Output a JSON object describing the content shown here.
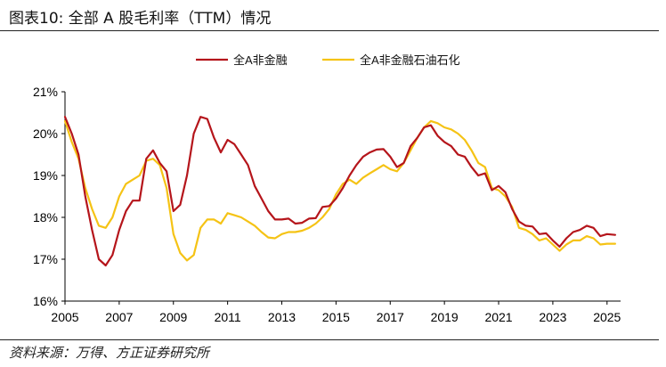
{
  "figure": {
    "title": "图表10: 全部 A 股毛利率（TTM）情况",
    "source": "资料来源：万得、方正证券研究所"
  },
  "chart_data": {
    "type": "line",
    "title": "",
    "xlabel": "",
    "ylabel": "",
    "xlim": [
      2005,
      2025.5
    ],
    "ylim": [
      16,
      21
    ],
    "x_ticks": [
      "2005",
      "2007",
      "2009",
      "2011",
      "2013",
      "2015",
      "2017",
      "2019",
      "2021",
      "2023",
      "2025"
    ],
    "y_ticks": [
      "16%",
      "17%",
      "18%",
      "19%",
      "20%",
      "21%"
    ],
    "y_unit": "%",
    "grid": false,
    "legend_position": "top-center",
    "series": [
      {
        "name": "全A非金融",
        "color": "#b5151b",
        "points": [
          [
            2005.0,
            20.4
          ],
          [
            2005.25,
            20.0
          ],
          [
            2005.5,
            19.5
          ],
          [
            2005.75,
            18.5
          ],
          [
            2006.0,
            17.7
          ],
          [
            2006.25,
            17.0
          ],
          [
            2006.5,
            16.85
          ],
          [
            2006.75,
            17.1
          ],
          [
            2007.0,
            17.7
          ],
          [
            2007.25,
            18.15
          ],
          [
            2007.5,
            18.4
          ],
          [
            2007.75,
            18.4
          ],
          [
            2008.0,
            19.4
          ],
          [
            2008.25,
            19.6
          ],
          [
            2008.5,
            19.3
          ],
          [
            2008.75,
            19.1
          ],
          [
            2009.0,
            18.15
          ],
          [
            2009.25,
            18.3
          ],
          [
            2009.5,
            19.0
          ],
          [
            2009.75,
            20.0
          ],
          [
            2010.0,
            20.4
          ],
          [
            2010.25,
            20.35
          ],
          [
            2010.5,
            19.9
          ],
          [
            2010.75,
            19.55
          ],
          [
            2011.0,
            19.85
          ],
          [
            2011.25,
            19.75
          ],
          [
            2011.5,
            19.5
          ],
          [
            2011.75,
            19.25
          ],
          [
            2012.0,
            18.75
          ],
          [
            2012.25,
            18.45
          ],
          [
            2012.5,
            18.15
          ],
          [
            2012.75,
            17.95
          ],
          [
            2013.0,
            17.95
          ],
          [
            2013.25,
            17.97
          ],
          [
            2013.5,
            17.85
          ],
          [
            2013.75,
            17.87
          ],
          [
            2014.0,
            17.97
          ],
          [
            2014.25,
            17.98
          ],
          [
            2014.5,
            18.25
          ],
          [
            2014.75,
            18.27
          ],
          [
            2015.0,
            18.45
          ],
          [
            2015.25,
            18.7
          ],
          [
            2015.5,
            19.0
          ],
          [
            2015.75,
            19.25
          ],
          [
            2016.0,
            19.45
          ],
          [
            2016.25,
            19.55
          ],
          [
            2016.5,
            19.62
          ],
          [
            2016.75,
            19.63
          ],
          [
            2017.0,
            19.45
          ],
          [
            2017.25,
            19.2
          ],
          [
            2017.5,
            19.3
          ],
          [
            2017.75,
            19.7
          ],
          [
            2018.0,
            19.9
          ],
          [
            2018.25,
            20.15
          ],
          [
            2018.5,
            20.2
          ],
          [
            2018.75,
            19.95
          ],
          [
            2019.0,
            19.8
          ],
          [
            2019.25,
            19.7
          ],
          [
            2019.5,
            19.5
          ],
          [
            2019.75,
            19.45
          ],
          [
            2020.0,
            19.2
          ],
          [
            2020.25,
            19.0
          ],
          [
            2020.5,
            19.05
          ],
          [
            2020.75,
            18.65
          ],
          [
            2021.0,
            18.75
          ],
          [
            2021.25,
            18.6
          ],
          [
            2021.5,
            18.2
          ],
          [
            2021.75,
            17.9
          ],
          [
            2022.0,
            17.8
          ],
          [
            2022.25,
            17.78
          ],
          [
            2022.5,
            17.6
          ],
          [
            2022.75,
            17.62
          ],
          [
            2023.0,
            17.45
          ],
          [
            2023.25,
            17.3
          ],
          [
            2023.5,
            17.5
          ],
          [
            2023.75,
            17.65
          ],
          [
            2024.0,
            17.7
          ],
          [
            2024.25,
            17.8
          ],
          [
            2024.5,
            17.75
          ],
          [
            2024.75,
            17.55
          ],
          [
            2025.0,
            17.6
          ],
          [
            2025.3,
            17.58
          ]
        ]
      },
      {
        "name": "全A非金融石油石化",
        "color": "#f5c315",
        "points": [
          [
            2005.0,
            20.3
          ],
          [
            2005.25,
            19.8
          ],
          [
            2005.5,
            19.4
          ],
          [
            2005.75,
            18.7
          ],
          [
            2006.0,
            18.2
          ],
          [
            2006.25,
            17.8
          ],
          [
            2006.5,
            17.75
          ],
          [
            2006.75,
            18.0
          ],
          [
            2007.0,
            18.5
          ],
          [
            2007.25,
            18.8
          ],
          [
            2007.5,
            18.9
          ],
          [
            2007.75,
            19.0
          ],
          [
            2008.0,
            19.35
          ],
          [
            2008.25,
            19.4
          ],
          [
            2008.5,
            19.25
          ],
          [
            2008.75,
            18.7
          ],
          [
            2009.0,
            17.6
          ],
          [
            2009.25,
            17.15
          ],
          [
            2009.5,
            16.97
          ],
          [
            2009.75,
            17.1
          ],
          [
            2010.0,
            17.75
          ],
          [
            2010.25,
            17.95
          ],
          [
            2010.5,
            17.95
          ],
          [
            2010.75,
            17.85
          ],
          [
            2011.0,
            18.1
          ],
          [
            2011.25,
            18.05
          ],
          [
            2011.5,
            18.0
          ],
          [
            2011.75,
            17.9
          ],
          [
            2012.0,
            17.8
          ],
          [
            2012.25,
            17.65
          ],
          [
            2012.5,
            17.52
          ],
          [
            2012.75,
            17.5
          ],
          [
            2013.0,
            17.6
          ],
          [
            2013.25,
            17.65
          ],
          [
            2013.5,
            17.65
          ],
          [
            2013.75,
            17.68
          ],
          [
            2014.0,
            17.75
          ],
          [
            2014.25,
            17.85
          ],
          [
            2014.5,
            18.0
          ],
          [
            2014.75,
            18.2
          ],
          [
            2015.0,
            18.55
          ],
          [
            2015.25,
            18.8
          ],
          [
            2015.5,
            18.9
          ],
          [
            2015.75,
            18.8
          ],
          [
            2016.0,
            18.95
          ],
          [
            2016.25,
            19.05
          ],
          [
            2016.5,
            19.15
          ],
          [
            2016.75,
            19.25
          ],
          [
            2017.0,
            19.15
          ],
          [
            2017.25,
            19.1
          ],
          [
            2017.5,
            19.3
          ],
          [
            2017.75,
            19.6
          ],
          [
            2018.0,
            19.9
          ],
          [
            2018.25,
            20.15
          ],
          [
            2018.5,
            20.3
          ],
          [
            2018.75,
            20.25
          ],
          [
            2019.0,
            20.15
          ],
          [
            2019.25,
            20.1
          ],
          [
            2019.5,
            20.0
          ],
          [
            2019.75,
            19.85
          ],
          [
            2020.0,
            19.6
          ],
          [
            2020.25,
            19.3
          ],
          [
            2020.5,
            19.2
          ],
          [
            2020.75,
            18.7
          ],
          [
            2021.0,
            18.65
          ],
          [
            2021.25,
            18.5
          ],
          [
            2021.5,
            18.25
          ],
          [
            2021.75,
            17.75
          ],
          [
            2022.0,
            17.7
          ],
          [
            2022.25,
            17.6
          ],
          [
            2022.5,
            17.45
          ],
          [
            2022.75,
            17.5
          ],
          [
            2023.0,
            17.35
          ],
          [
            2023.25,
            17.2
          ],
          [
            2023.5,
            17.35
          ],
          [
            2023.75,
            17.45
          ],
          [
            2024.0,
            17.45
          ],
          [
            2024.25,
            17.55
          ],
          [
            2024.5,
            17.5
          ],
          [
            2024.75,
            17.35
          ],
          [
            2025.0,
            17.37
          ],
          [
            2025.3,
            17.37
          ]
        ]
      }
    ]
  }
}
